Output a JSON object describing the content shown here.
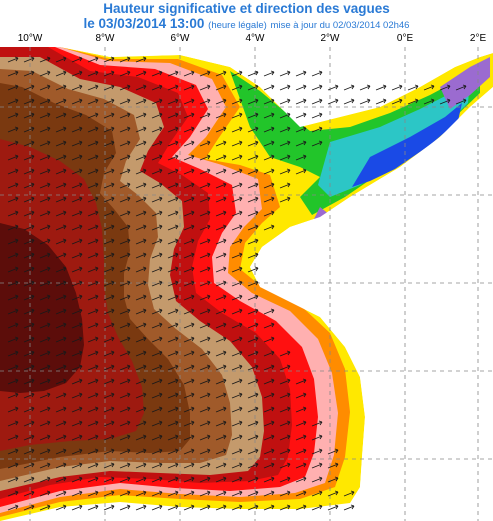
{
  "title": "Hauteur significative et direction des vagues",
  "subtitle": {
    "date": "le 03/03/2014 13:00",
    "note": "(heure légale)",
    "update": "mise à jour du 02/03/2014 02h46"
  },
  "longitude_labels": [
    "10°W",
    "8°W",
    "6°W",
    "4°W",
    "2°W",
    "0°E",
    "2°E"
  ],
  "colors": {
    "darkest_red": "#5c0d0a",
    "dark_red": "#9e1a10",
    "brown": "#7a3910",
    "mid_brown": "#a05a2a",
    "light_brown": "#c49a6c",
    "red": "#ff1010",
    "deep_red": "#c01010",
    "pink": "#ffb0b0",
    "orange": "#ff8c00",
    "yellow": "#ffe800",
    "green": "#22c52a",
    "cyan": "#2cc6c6",
    "blue": "#1a4ae6",
    "purple": "#9b6bd0",
    "land": "#ffffff",
    "grid": "#888888",
    "arrow": "#1a1a1a"
  }
}
